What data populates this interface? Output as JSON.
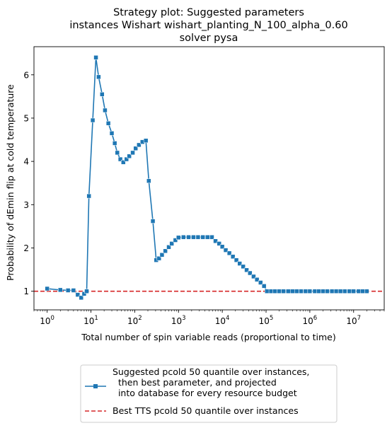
{
  "chart_data": {
    "type": "line",
    "title_lines": [
      "Strategy plot: Suggested parameters",
      "instances Wishart wishart_planting_N_100_alpha_0.60",
      "solver pysa"
    ],
    "xlabel": "Total number of spin variable reads (proportional to time)",
    "ylabel": "Probability of dEmin flip at cold temperature",
    "x_scale": "log",
    "xlim": [
      0.5,
      50000000
    ],
    "ylim": [
      0.57,
      6.65
    ],
    "x_ticks": [
      {
        "value": 1,
        "base": "10",
        "exp": "0"
      },
      {
        "value": 10,
        "base": "10",
        "exp": "1"
      },
      {
        "value": 100,
        "base": "10",
        "exp": "2"
      },
      {
        "value": 1000,
        "base": "10",
        "exp": "3"
      },
      {
        "value": 10000,
        "base": "10",
        "exp": "4"
      },
      {
        "value": 100000,
        "base": "10",
        "exp": "5"
      },
      {
        "value": 1000000,
        "base": "10",
        "exp": "6"
      },
      {
        "value": 10000000,
        "base": "10",
        "exp": "7"
      }
    ],
    "y_ticks": [
      1,
      2,
      3,
      4,
      5,
      6
    ],
    "grid": false,
    "legend_position": "below",
    "series": [
      {
        "name": "Suggested pcold 50 quantile over instances,\n  then best parameter, and projected\n  into database for every resource budget",
        "color": "#1f77b4",
        "marker": "square",
        "points": [
          [
            1,
            1.06
          ],
          [
            2,
            1.03
          ],
          [
            3,
            1.02
          ],
          [
            4,
            1.02
          ],
          [
            5,
            0.92
          ],
          [
            6,
            0.85
          ],
          [
            7,
            0.94
          ],
          [
            8,
            1.0
          ],
          [
            9,
            3.2
          ],
          [
            11,
            4.95
          ],
          [
            13,
            6.4
          ],
          [
            15,
            5.95
          ],
          [
            18,
            5.55
          ],
          [
            21,
            5.18
          ],
          [
            25,
            4.88
          ],
          [
            30,
            4.65
          ],
          [
            35,
            4.42
          ],
          [
            40,
            4.2
          ],
          [
            47,
            4.05
          ],
          [
            55,
            3.98
          ],
          [
            65,
            4.05
          ],
          [
            75,
            4.12
          ],
          [
            90,
            4.2
          ],
          [
            105,
            4.3
          ],
          [
            125,
            4.38
          ],
          [
            150,
            4.45
          ],
          [
            180,
            4.48
          ],
          [
            210,
            3.55
          ],
          [
            260,
            2.62
          ],
          [
            310,
            1.72
          ],
          [
            360,
            1.76
          ],
          [
            420,
            1.84
          ],
          [
            500,
            1.93
          ],
          [
            600,
            2.02
          ],
          [
            700,
            2.1
          ],
          [
            850,
            2.18
          ],
          [
            1000,
            2.24
          ],
          [
            1300,
            2.25
          ],
          [
            1700,
            2.25
          ],
          [
            2200,
            2.25
          ],
          [
            2800,
            2.25
          ],
          [
            3600,
            2.25
          ],
          [
            4600,
            2.25
          ],
          [
            5800,
            2.25
          ],
          [
            7000,
            2.16
          ],
          [
            8500,
            2.1
          ],
          [
            10000,
            2.03
          ],
          [
            12000,
            1.95
          ],
          [
            14500,
            1.88
          ],
          [
            17500,
            1.8
          ],
          [
            21000,
            1.72
          ],
          [
            25000,
            1.64
          ],
          [
            30000,
            1.57
          ],
          [
            36000,
            1.49
          ],
          [
            43000,
            1.42
          ],
          [
            52000,
            1.34
          ],
          [
            62000,
            1.27
          ],
          [
            75000,
            1.2
          ],
          [
            90000,
            1.12
          ],
          [
            105000,
            1.0
          ],
          [
            130000,
            1.0
          ],
          [
            160000,
            1.0
          ],
          [
            200000,
            1.0
          ],
          [
            250000,
            1.0
          ],
          [
            320000,
            1.0
          ],
          [
            400000,
            1.0
          ],
          [
            500000,
            1.0
          ],
          [
            630000,
            1.0
          ],
          [
            800000,
            1.0
          ],
          [
            1000000,
            1.0
          ],
          [
            1300000,
            1.0
          ],
          [
            1600000,
            1.0
          ],
          [
            2000000,
            1.0
          ],
          [
            2500000,
            1.0
          ],
          [
            3200000,
            1.0
          ],
          [
            4000000,
            1.0
          ],
          [
            5000000,
            1.0
          ],
          [
            6300000,
            1.0
          ],
          [
            8000000,
            1.0
          ],
          [
            10000000,
            1.0
          ],
          [
            13000000,
            1.0
          ],
          [
            16000000,
            1.0
          ],
          [
            20000000,
            1.0
          ]
        ]
      },
      {
        "name": "Best TTS pcold 50 quantile over instances",
        "color": "#d62728",
        "style": "dashed",
        "hline": 1.0
      }
    ]
  }
}
